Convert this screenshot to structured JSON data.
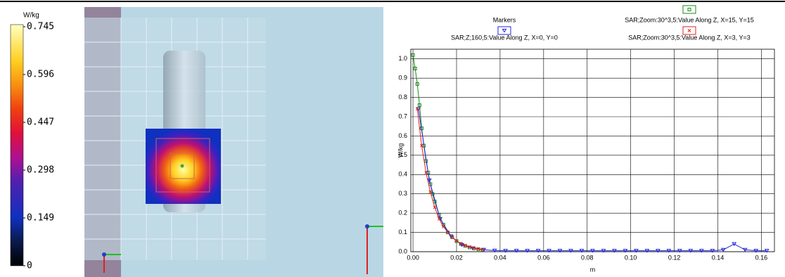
{
  "colorbar": {
    "unit": "W/kg",
    "ticks": [
      0.745,
      0.596,
      0.447,
      0.298,
      0.149,
      0
    ]
  },
  "chart_data": {
    "type": "line",
    "legend_title": "Markers",
    "xlabel": "m",
    "ylabel": "W/kg",
    "xlim": [
      -0.001,
      0.166
    ],
    "ylim": [
      0,
      1.05
    ],
    "xticks": [
      {
        "value": 0,
        "label": "0.00"
      },
      {
        "value": 0.02,
        "label": "0.02"
      },
      {
        "value": 0.04,
        "label": "0.04"
      },
      {
        "value": 0.06,
        "label": "0.06"
      },
      {
        "value": 0.08,
        "label": "0.08"
      },
      {
        "value": 0.1,
        "label": "0.10"
      },
      {
        "value": 0.12,
        "label": "0.12"
      },
      {
        "value": 0.14,
        "label": "0.14"
      },
      {
        "value": 0.16,
        "label": "0.16"
      }
    ],
    "yticks": [
      {
        "value": 0,
        "label": "0.0"
      },
      0.1,
      0.2,
      0.3,
      0.4,
      0.5,
      0.6,
      0.7,
      0.8,
      0.9,
      {
        "value": 1,
        "label": "1.0"
      }
    ],
    "grid": true,
    "series": [
      {
        "name": "SAR;Zoom:30^3,5:Value Along Z, X=15, Y=15",
        "color": "#1a8a1a",
        "marker": "square",
        "x": [
          0,
          0.001,
          0.002,
          0.003,
          0.004,
          0.005,
          0.006,
          0.007,
          0.008,
          0.009,
          0.01,
          0.012,
          0.014,
          0.016,
          0.018,
          0.02,
          0.022,
          0.024,
          0.026,
          0.028,
          0.03,
          0.032
        ],
        "values": [
          1.02,
          0.95,
          0.87,
          0.76,
          0.64,
          0.55,
          0.47,
          0.41,
          0.35,
          0.3,
          0.26,
          0.19,
          0.14,
          0.1,
          0.075,
          0.055,
          0.04,
          0.03,
          0.022,
          0.017,
          0.013,
          0.01
        ]
      },
      {
        "name": "SAR;Z;160,5:Value Along Z, X=0, Y=0",
        "color": "#2020e0",
        "marker": "triangle",
        "x": [
          0.0025,
          0.0075,
          0.0125,
          0.0175,
          0.0225,
          0.0275,
          0.0325,
          0.0375,
          0.0425,
          0.0475,
          0.0525,
          0.0575,
          0.0625,
          0.0675,
          0.0725,
          0.0775,
          0.0825,
          0.0875,
          0.0925,
          0.0975,
          0.1025,
          0.1075,
          0.1125,
          0.1175,
          0.1225,
          0.1275,
          0.1325,
          0.1375,
          0.1425,
          0.1475,
          0.1525,
          0.1575,
          0.1625
        ],
        "values": [
          0.74,
          0.37,
          0.17,
          0.08,
          0.035,
          0.018,
          0.01,
          0.006,
          0.005,
          0.005,
          0.005,
          0.005,
          0.005,
          0.005,
          0.005,
          0.005,
          0.005,
          0.005,
          0.005,
          0.005,
          0.005,
          0.005,
          0.005,
          0.005,
          0.005,
          0.005,
          0.005,
          0.005,
          0.01,
          0.04,
          0.01,
          0.005,
          0.005
        ]
      },
      {
        "name": "SAR;Zoom:30^3,5:Value Along Z, X=3, Y=3",
        "color": "#e02020",
        "marker": "x",
        "x": [
          0.002,
          0.004,
          0.006,
          0.008,
          0.01,
          0.012,
          0.014,
          0.016,
          0.018,
          0.02,
          0.022,
          0.024,
          0.026,
          0.028,
          0.03,
          0.032
        ],
        "values": [
          0.74,
          0.55,
          0.41,
          0.31,
          0.23,
          0.17,
          0.13,
          0.1,
          0.075,
          0.056,
          0.042,
          0.032,
          0.025,
          0.019,
          0.015,
          0.012
        ]
      }
    ]
  }
}
